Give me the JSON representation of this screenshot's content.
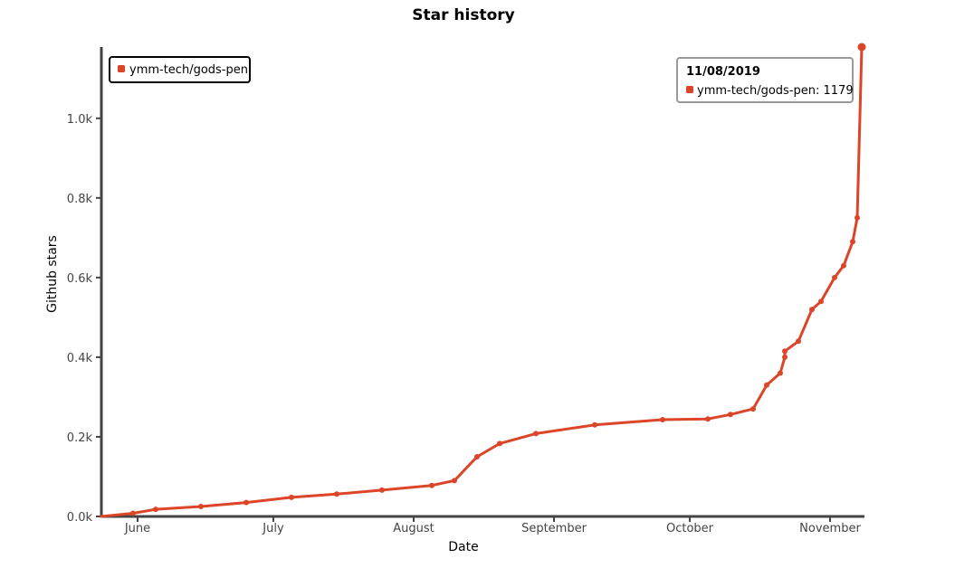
{
  "chart_data": {
    "type": "line",
    "title": "Star history",
    "xlabel": "Date",
    "ylabel": "Github stars",
    "x_tick_labels": [
      "June",
      "July",
      "August",
      "September",
      "October",
      "November"
    ],
    "y_tick_labels": [
      "0.0k",
      "0.2k",
      "0.4k",
      "0.6k",
      "0.8k",
      "1.0k"
    ],
    "ylim": [
      0,
      1179
    ],
    "xlim": [
      "2019-05-24",
      "2019-11-08"
    ],
    "grid": false,
    "legend_position": "top-left",
    "colors": {
      "series": "#dd4528",
      "axis": "#444444"
    },
    "series": [
      {
        "name": "ymm-tech/gods-pen",
        "x": [
          "2019-05-24",
          "2019-05-31",
          "2019-06-05",
          "2019-06-15",
          "2019-06-25",
          "2019-07-05",
          "2019-07-15",
          "2019-07-25",
          "2019-08-05",
          "2019-08-10",
          "2019-08-15",
          "2019-08-20",
          "2019-08-28",
          "2019-09-10",
          "2019-09-25",
          "2019-10-05",
          "2019-10-10",
          "2019-10-15",
          "2019-10-18",
          "2019-10-21",
          "2019-10-22",
          "2019-10-22",
          "2019-10-25",
          "2019-10-28",
          "2019-10-30",
          "2019-11-02",
          "2019-11-04",
          "2019-11-06",
          "2019-11-07",
          "2019-11-08"
        ],
        "y": [
          0,
          8,
          18,
          25,
          35,
          48,
          56,
          66,
          78,
          90,
          150,
          183,
          208,
          230,
          243,
          245,
          256,
          270,
          330,
          360,
          400,
          415,
          440,
          520,
          540,
          600,
          630,
          690,
          750,
          1179
        ]
      }
    ],
    "tooltip": {
      "date": "11/08/2019",
      "series_name": "ymm-tech/gods-pen",
      "value": 1179
    }
  }
}
